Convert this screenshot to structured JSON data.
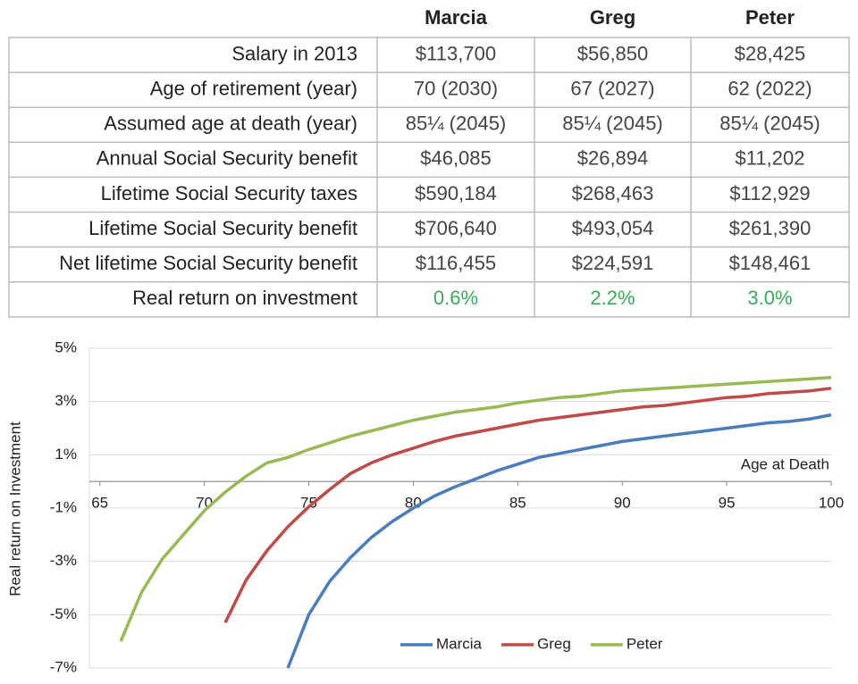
{
  "table": {
    "columns": [
      "Marcia",
      "Greg",
      "Peter"
    ],
    "rows": [
      {
        "label": "Salary in 2013",
        "values": [
          "$113,700",
          "$56,850",
          "$28,425"
        ]
      },
      {
        "label": "Age of retirement (year)",
        "values": [
          "70 (2030)",
          "67 (2027)",
          "62 (2022)"
        ]
      },
      {
        "label": "Assumed age at death (year)",
        "values": [
          "85¼ (2045)",
          "85¼ (2045)",
          "85¼ (2045)"
        ]
      },
      {
        "label": "Annual Social Security benefit",
        "values": [
          "$46,085",
          "$26,894",
          "$11,202"
        ]
      },
      {
        "label": "Lifetime Social Security taxes",
        "values": [
          "$590,184",
          "$268,463",
          "$112,929"
        ]
      },
      {
        "label": "Lifetime Social Security benefit",
        "values": [
          "$706,640",
          "$493,054",
          "$261,390"
        ]
      },
      {
        "label": "Net lifetime Social Security benefit",
        "values": [
          "$116,455",
          "$224,591",
          "$148,461"
        ]
      },
      {
        "label": "Real return on investment",
        "values": [
          "0.6%",
          "2.2%",
          "3.0%"
        ],
        "color": "#3aaa5c"
      }
    ]
  },
  "chart_data": {
    "type": "line",
    "x_label": "Age at Death",
    "y_label": "Real return on Investment",
    "x": [
      65,
      66,
      67,
      68,
      69,
      70,
      71,
      72,
      73,
      74,
      75,
      76,
      77,
      78,
      79,
      80,
      81,
      82,
      83,
      84,
      85,
      86,
      87,
      88,
      89,
      90,
      91,
      92,
      93,
      94,
      95,
      96,
      97,
      98,
      99,
      100
    ],
    "series": [
      {
        "name": "Marcia",
        "color": "#4a7ebb",
        "values": [
          null,
          null,
          null,
          null,
          null,
          null,
          null,
          null,
          null,
          -7,
          -5.0,
          -3.75,
          -2.85,
          -2.1,
          -1.5,
          -1.0,
          -0.55,
          -0.2,
          0.1,
          0.4,
          0.65,
          0.9,
          1.05,
          1.2,
          1.35,
          1.5,
          1.6,
          1.7,
          1.8,
          1.9,
          2.0,
          2.1,
          2.2,
          2.25,
          2.35,
          2.5
        ]
      },
      {
        "name": "Greg",
        "color": "#be4b48",
        "values": [
          null,
          null,
          null,
          null,
          null,
          null,
          -5.3,
          -3.7,
          -2.6,
          -1.7,
          -0.95,
          -0.3,
          0.3,
          0.7,
          1.0,
          1.25,
          1.5,
          1.7,
          1.85,
          2.0,
          2.15,
          2.3,
          2.4,
          2.5,
          2.6,
          2.7,
          2.8,
          2.85,
          2.95,
          3.05,
          3.15,
          3.2,
          3.3,
          3.35,
          3.4,
          3.5
        ]
      },
      {
        "name": "Peter",
        "color": "#98b954",
        "values": [
          null,
          -6.0,
          -4.15,
          -2.9,
          -2.0,
          -1.1,
          -0.4,
          0.2,
          0.7,
          0.9,
          1.2,
          1.45,
          1.7,
          1.9,
          2.1,
          2.3,
          2.45,
          2.6,
          2.7,
          2.8,
          2.95,
          3.05,
          3.15,
          3.2,
          3.3,
          3.4,
          3.45,
          3.5,
          3.55,
          3.6,
          3.65,
          3.7,
          3.75,
          3.8,
          3.85,
          3.9
        ]
      }
    ],
    "xlim": [
      64.5,
      100
    ],
    "xticks": [
      65,
      70,
      75,
      80,
      85,
      90,
      95,
      100
    ],
    "ylim": [
      -7,
      5
    ],
    "yticks": [
      {
        "value": -7,
        "label": "-7%"
      },
      {
        "value": -5,
        "label": "-5%"
      },
      {
        "value": -3,
        "label": "-3%"
      },
      {
        "value": -1,
        "label": "-1%"
      },
      {
        "value": 1,
        "label": "1%"
      },
      {
        "value": 3,
        "label": "3%"
      },
      {
        "value": 5,
        "label": "5%"
      }
    ],
    "grid": true,
    "legend": "bottom-right"
  }
}
